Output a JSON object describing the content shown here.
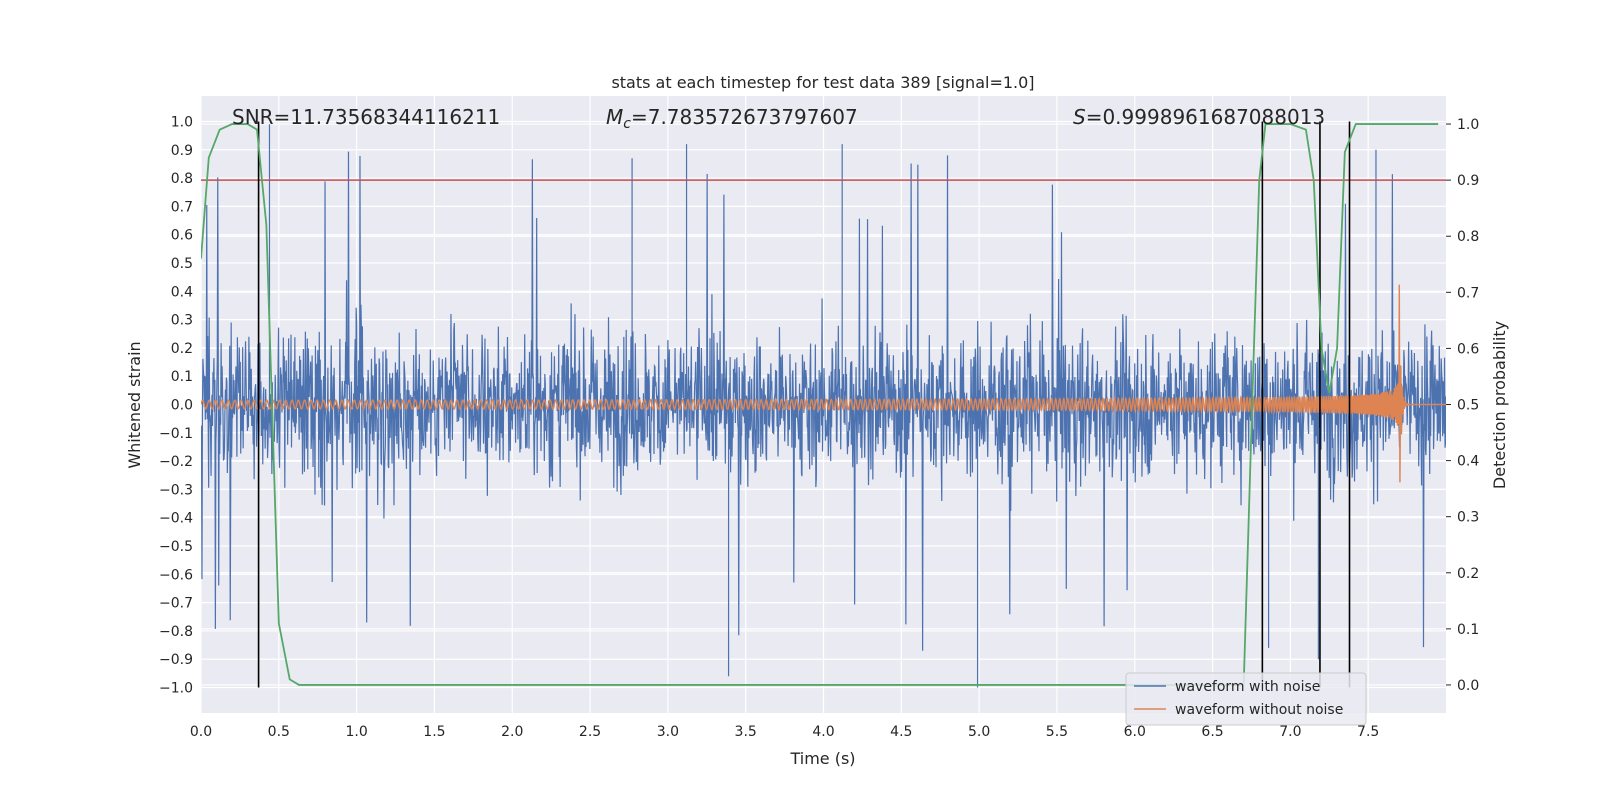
{
  "chart_data": {
    "type": "line",
    "title": "stats at each timestep for test data 389 [signal=1.0]",
    "xlabel": "Time (s)",
    "ylabel_left": "Whitened strain",
    "ylabel_right": "Detection probability",
    "xlim": [
      0.0,
      8.0
    ],
    "ylim_left": [
      -1.09,
      1.09
    ],
    "ylim_right": [
      -0.05,
      1.05
    ],
    "x_ticks": [
      "0.0",
      "0.5",
      "1.0",
      "1.5",
      "2.0",
      "2.5",
      "3.0",
      "3.5",
      "4.0",
      "4.5",
      "5.0",
      "5.5",
      "6.0",
      "6.5",
      "7.0",
      "7.5"
    ],
    "y_ticks_left": [
      "1.0",
      "0.9",
      "0.8",
      "0.7",
      "0.6",
      "0.5",
      "0.4",
      "0.3",
      "0.2",
      "0.1",
      "0.0",
      "−0.1",
      "−0.2",
      "−0.3",
      "−0.4",
      "−0.5",
      "−0.6",
      "−0.7",
      "−0.8",
      "−0.9",
      "−1.0"
    ],
    "y_ticks_right": [
      "1.0",
      "0.9",
      "0.8",
      "0.7",
      "0.6",
      "0.5",
      "0.4",
      "0.3",
      "0.2",
      "0.1",
      "0.0"
    ],
    "grid": true,
    "legend_position": "bottom-right",
    "annotations": {
      "snr": "SNR=11.73568344116211",
      "mc_symbol": "M",
      "mc_sub": "c",
      "mc_value": "=7.783572673797607",
      "s_symbol": "S",
      "s_value": "=0.9998961687088013"
    },
    "threshold": {
      "value": 0.9,
      "axis": "right",
      "color": "#c44e52"
    },
    "vertical_markers": [
      0.37,
      6.82,
      7.19,
      7.38
    ],
    "series": [
      {
        "name": "waveform with noise",
        "axis": "left",
        "color": "#4c72b0",
        "description_envelope": {
          "amplitude_typical": 0.55,
          "amplitude_peak": 1.0,
          "spike_times": [
            0.44,
            2.77,
            3.12,
            3.39,
            4.12,
            4.99,
            7.18,
            7.55,
            6.86
          ]
        }
      },
      {
        "name": "waveform without noise",
        "axis": "left",
        "color": "#dd8452",
        "chirp": {
          "t_start": 0.0,
          "t_merge": 7.7,
          "amp_start": 0.015,
          "amp_peak": 0.43,
          "amp_min": -0.37
        }
      },
      {
        "name": "detection probability",
        "axis": "right",
        "color": "#55a868",
        "x": [
          0.0,
          0.05,
          0.12,
          0.2,
          0.3,
          0.36,
          0.42,
          0.5,
          0.57,
          0.63,
          1.0,
          2.0,
          3.0,
          4.0,
          5.0,
          6.0,
          6.7,
          6.76,
          6.8,
          6.84,
          6.9,
          7.0,
          7.1,
          7.15,
          7.2,
          7.25,
          7.3,
          7.35,
          7.42,
          7.5,
          7.7,
          7.95
        ],
        "y": [
          0.76,
          0.94,
          0.99,
          1.0,
          1.0,
          0.99,
          0.82,
          0.11,
          0.01,
          0.0,
          0.0,
          0.0,
          0.0,
          0.0,
          0.0,
          0.0,
          0.0,
          0.55,
          0.9,
          1.0,
          1.0,
          1.0,
          0.99,
          0.9,
          0.6,
          0.52,
          0.6,
          0.95,
          1.0,
          1.0,
          1.0,
          1.0
        ]
      }
    ]
  }
}
